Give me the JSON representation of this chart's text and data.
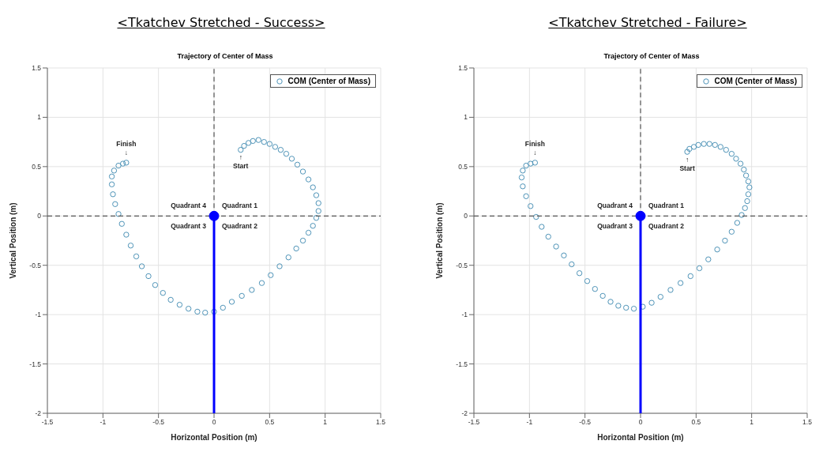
{
  "chart_data": [
    {
      "type": "scatter",
      "title": "<Tkatchev Stretched - Success>",
      "subtitle": "Trajectory of Center of Mass",
      "xlabel": "Horizontal Position (m)",
      "ylabel": "Vertical Position (m)",
      "xlim": [
        -1.5,
        1.5
      ],
      "ylim": [
        -2,
        1.5
      ],
      "xticks": [
        -1.5,
        -1,
        -0.5,
        0,
        0.5,
        1,
        1.5
      ],
      "yticks": [
        -2,
        -1.5,
        -1,
        -0.5,
        0,
        0.5,
        1,
        1.5
      ],
      "grid": true,
      "legend": "top right",
      "annotations": [
        {
          "text": "Finish\n↓",
          "x": -0.79,
          "y": 0.54
        },
        {
          "text": "↑\nStart",
          "x": 0.24,
          "y": 0.67
        },
        "Quadrant 4",
        "Quadrant 1",
        "Quadrant 3",
        "Quadrant 2"
      ],
      "series": [
        {
          "name": "COM (Center of Mass)",
          "color": "#4f94b8",
          "marker": "circle",
          "x": [
            0.24,
            0.27,
            0.31,
            0.35,
            0.4,
            0.45,
            0.5,
            0.55,
            0.6,
            0.65,
            0.7,
            0.75,
            0.8,
            0.85,
            0.89,
            0.92,
            0.94,
            0.94,
            0.92,
            0.89,
            0.85,
            0.8,
            0.74,
            0.67,
            0.59,
            0.51,
            0.43,
            0.34,
            0.25,
            0.16,
            0.08,
            0.0,
            -0.08,
            -0.15,
            -0.23,
            -0.31,
            -0.39,
            -0.46,
            -0.53,
            -0.59,
            -0.65,
            -0.7,
            -0.75,
            -0.79,
            -0.83,
            -0.86,
            -0.89,
            -0.91,
            -0.92,
            -0.92,
            -0.9,
            -0.86,
            -0.82,
            -0.79
          ],
          "values": [
            0.67,
            0.71,
            0.74,
            0.76,
            0.77,
            0.75,
            0.73,
            0.7,
            0.67,
            0.63,
            0.58,
            0.52,
            0.45,
            0.37,
            0.29,
            0.21,
            0.13,
            0.05,
            -0.02,
            -0.1,
            -0.17,
            -0.25,
            -0.33,
            -0.42,
            -0.51,
            -0.6,
            -0.68,
            -0.75,
            -0.81,
            -0.87,
            -0.93,
            -0.97,
            -0.98,
            -0.97,
            -0.94,
            -0.9,
            -0.85,
            -0.78,
            -0.7,
            -0.61,
            -0.51,
            -0.41,
            -0.3,
            -0.19,
            -0.08,
            0.02,
            0.12,
            0.22,
            0.32,
            0.4,
            0.46,
            0.51,
            0.53,
            0.54
          ]
        },
        {
          "type": "line",
          "color": "#555555",
          "line_style": "dashed",
          "marker": "none",
          "x": [
            0,
            0
          ],
          "values": [
            0,
            1.5
          ]
        },
        {
          "type": "line",
          "color": "#555555",
          "line_style": "dashed",
          "marker": "none",
          "x": [
            -1.5,
            1.5
          ],
          "values": [
            0,
            0
          ]
        },
        {
          "type": "line",
          "color": "#0000ff",
          "line_style": "solid",
          "marker": "none",
          "x": [
            0,
            0
          ],
          "values": [
            0,
            -2
          ]
        },
        {
          "color": "#0000ff",
          "marker": "circle",
          "x": [
            0
          ],
          "values": [
            0
          ]
        }
      ]
    },
    {
      "type": "scatter",
      "title": "<Tkatchev Stretched - Failure>",
      "subtitle": "Trajectory of Center of Mass",
      "xlabel": "Horizontal Position (m)",
      "ylabel": "Vertical Position (m)",
      "xlim": [
        -1.5,
        1.5
      ],
      "ylim": [
        -2,
        1.5
      ],
      "xticks": [
        -1.5,
        -1,
        -0.5,
        0,
        0.5,
        1,
        1.5
      ],
      "yticks": [
        -2,
        -1.5,
        -1,
        -0.5,
        0,
        0.5,
        1,
        1.5
      ],
      "grid": true,
      "legend": "top right",
      "annotations": [
        {
          "text": "Finish\n↓",
          "x": -0.95,
          "y": 0.54
        },
        {
          "text": "↑\nStart",
          "x": 0.42,
          "y": 0.65
        },
        "Quadrant 4",
        "Quadrant 1",
        "Quadrant 3",
        "Quadrant 2"
      ],
      "series": [
        {
          "name": "COM (Center of Mass)",
          "color": "#4f94b8",
          "marker": "circle",
          "x": [
            0.42,
            0.44,
            0.48,
            0.52,
            0.57,
            0.62,
            0.67,
            0.72,
            0.77,
            0.82,
            0.86,
            0.9,
            0.93,
            0.95,
            0.97,
            0.98,
            0.97,
            0.96,
            0.94,
            0.91,
            0.87,
            0.82,
            0.76,
            0.69,
            0.61,
            0.53,
            0.45,
            0.36,
            0.27,
            0.18,
            0.1,
            0.02,
            -0.06,
            -0.13,
            -0.2,
            -0.27,
            -0.34,
            -0.41,
            -0.48,
            -0.55,
            -0.62,
            -0.69,
            -0.76,
            -0.83,
            -0.89,
            -0.94,
            -0.99,
            -1.03,
            -1.06,
            -1.07,
            -1.06,
            -1.03,
            -0.99,
            -0.95
          ],
          "values": [
            0.65,
            0.68,
            0.7,
            0.72,
            0.73,
            0.73,
            0.72,
            0.7,
            0.67,
            0.63,
            0.58,
            0.53,
            0.47,
            0.41,
            0.35,
            0.29,
            0.22,
            0.15,
            0.08,
            0.01,
            -0.07,
            -0.16,
            -0.25,
            -0.34,
            -0.44,
            -0.53,
            -0.61,
            -0.68,
            -0.75,
            -0.82,
            -0.88,
            -0.92,
            -0.94,
            -0.93,
            -0.91,
            -0.87,
            -0.81,
            -0.74,
            -0.66,
            -0.58,
            -0.49,
            -0.4,
            -0.31,
            -0.21,
            -0.11,
            -0.01,
            0.1,
            0.2,
            0.3,
            0.39,
            0.46,
            0.51,
            0.53,
            0.54
          ]
        },
        {
          "type": "line",
          "color": "#555555",
          "line_style": "dashed",
          "marker": "none",
          "x": [
            0,
            0
          ],
          "values": [
            0,
            1.5
          ]
        },
        {
          "type": "line",
          "color": "#555555",
          "line_style": "dashed",
          "marker": "none",
          "x": [
            -1.5,
            1.5
          ],
          "values": [
            0,
            0
          ]
        },
        {
          "type": "line",
          "color": "#0000ff",
          "line_style": "solid",
          "marker": "none",
          "x": [
            0,
            0
          ],
          "values": [
            0,
            -2
          ]
        },
        {
          "color": "#0000ff",
          "marker": "circle",
          "x": [
            0
          ],
          "values": [
            0
          ]
        }
      ]
    }
  ]
}
